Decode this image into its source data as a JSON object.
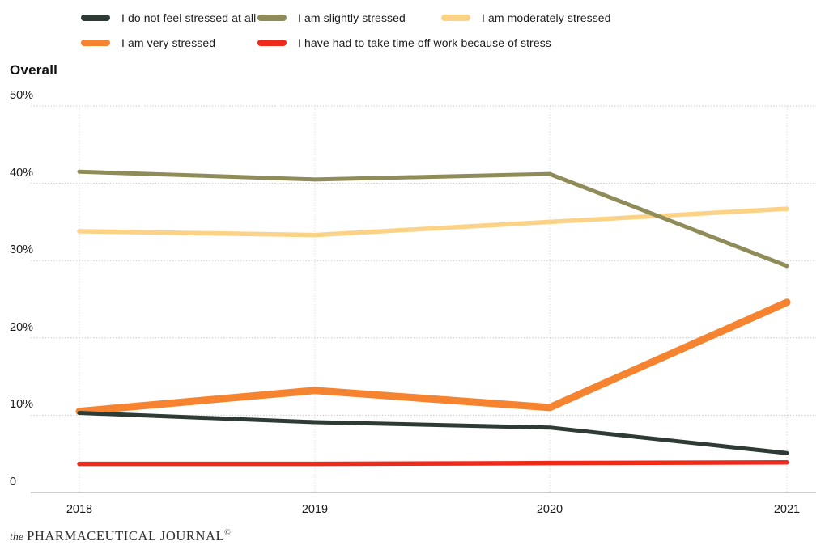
{
  "title": "Overall",
  "legend": {
    "rows": [
      [
        {
          "label": "I do not feel stressed at all",
          "color": "#2e3b34"
        },
        {
          "label": "I am slightly stressed",
          "color": "#8f8c59"
        },
        {
          "label": "I am moderately stressed",
          "color": "#fbd286"
        }
      ],
      [
        {
          "label": "I am very stressed",
          "color": "#f6832f"
        },
        {
          "label": "I have had to take time off work because of stress",
          "color": "#ee2b1a"
        }
      ]
    ]
  },
  "chart_data": {
    "type": "line",
    "title": "Overall",
    "x": [
      "2018",
      "2019",
      "2020",
      "2021"
    ],
    "series": [
      {
        "name": "I do not feel stressed at all",
        "color": "#2e3b34",
        "values": [
          10.3,
          9.1,
          8.4,
          5.1
        ]
      },
      {
        "name": "I am slightly stressed",
        "color": "#8f8c59",
        "values": [
          41.5,
          40.5,
          41.2,
          29.3
        ]
      },
      {
        "name": "I am moderately stressed",
        "color": "#fbd286",
        "values": [
          33.8,
          33.3,
          35.0,
          36.7
        ]
      },
      {
        "name": "I am very stressed",
        "color": "#f6832f",
        "values": [
          10.5,
          13.2,
          11.0,
          24.6
        ]
      },
      {
        "name": "I have had to take time off work because of stress",
        "color": "#ee2b1a",
        "values": [
          3.7,
          3.7,
          3.8,
          3.9
        ]
      }
    ],
    "ylim": [
      0,
      50
    ],
    "yticks": [
      "50%",
      "40%",
      "30%",
      "20%",
      "10%",
      "0"
    ],
    "grid": "horizontal dotted gridlines + vertical dotted category lines",
    "legend_position": "top"
  },
  "footer": {
    "prefix": "the",
    "name": "PHARMACEUTICAL JOURNAL",
    "symbol": "©"
  }
}
